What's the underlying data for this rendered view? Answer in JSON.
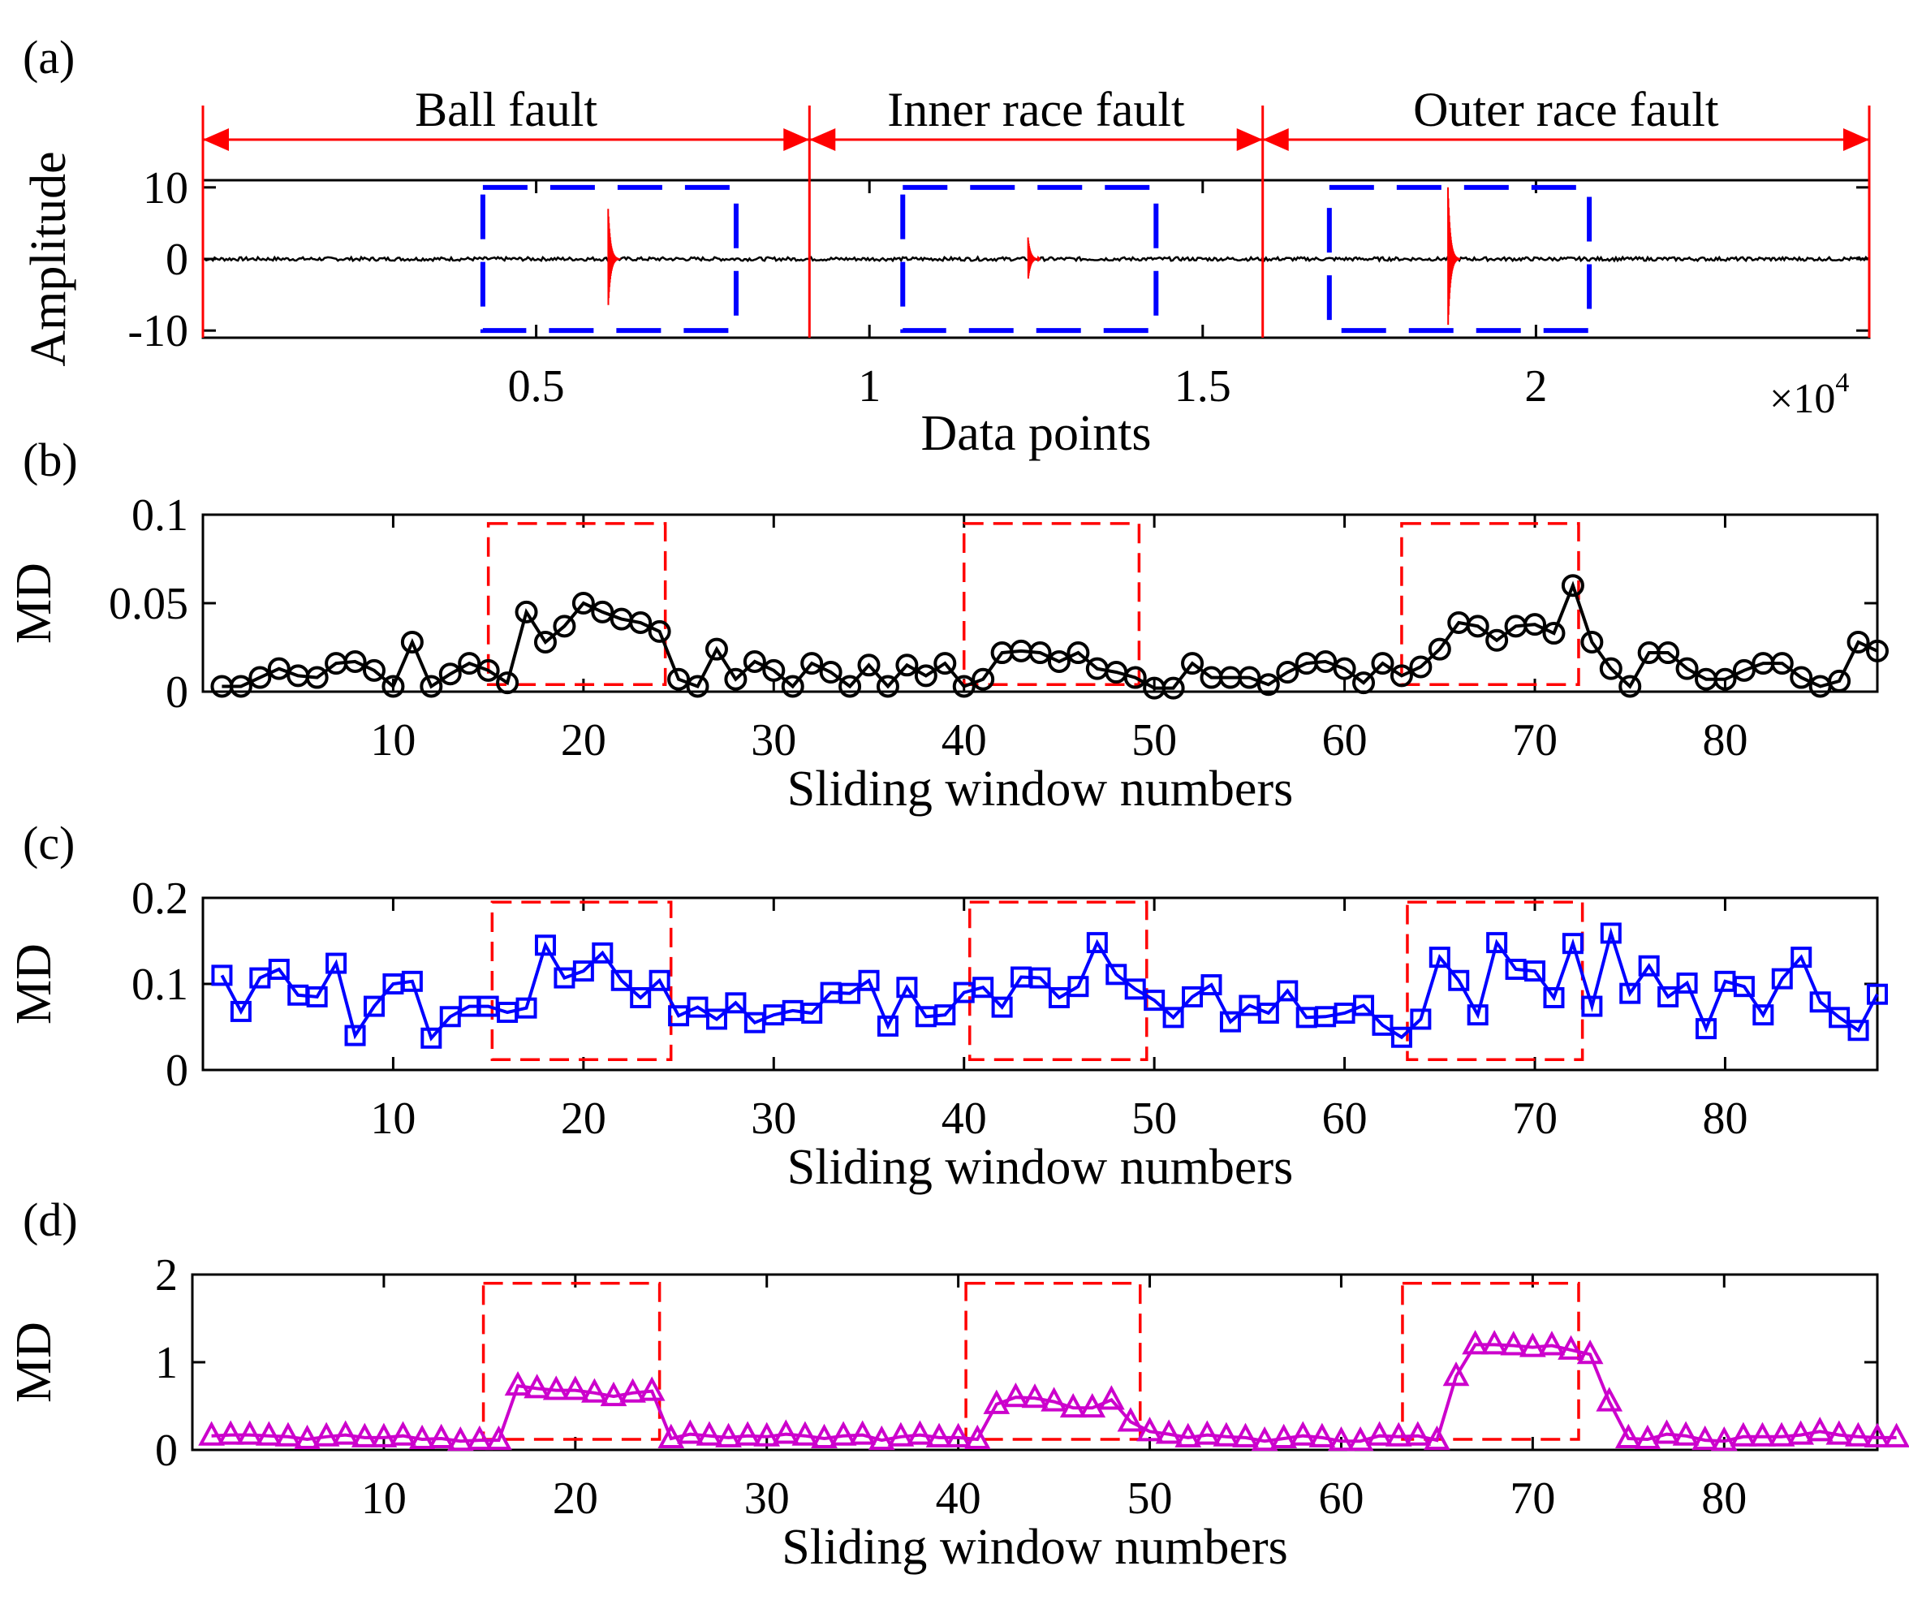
{
  "chart_data": [
    {
      "panel": "(a)",
      "type": "line",
      "xlabel": "Data points",
      "ylabel": "Amplitude",
      "xlim": [
        0,
        25000
      ],
      "ylim": [
        -11,
        11
      ],
      "x_ticks": [
        0.5,
        1,
        1.5,
        2
      ],
      "x_tick_labels": [
        "0.5",
        "1",
        "1.5",
        "2"
      ],
      "x_multiplier": "×10",
      "x_multiplier_exp": "4",
      "y_ticks": [
        -10,
        0,
        10
      ],
      "y_tick_labels": [
        "-10",
        "0",
        "10"
      ],
      "regions": [
        {
          "label": "Ball fault",
          "start": 0,
          "end": 9100
        },
        {
          "label": "Inner race fault",
          "start": 9100,
          "end": 15900
        },
        {
          "label": "Outer race fault",
          "start": 15900,
          "end": 25000
        }
      ],
      "boxes": [
        {
          "start": 4200,
          "end": 8000,
          "ymin": -10,
          "ymax": 10
        },
        {
          "start": 10500,
          "end": 14300,
          "ymin": -10,
          "ymax": 10
        },
        {
          "start": 16900,
          "end": 20800,
          "ymin": -10,
          "ymax": 10
        }
      ],
      "impulses": [
        {
          "center": 6100,
          "amplitude": 7
        },
        {
          "center": 12400,
          "amplitude": 3
        },
        {
          "center": 18700,
          "amplitude": 10
        }
      ],
      "colors": {
        "signal": "#000000",
        "impulse": "#ff0000",
        "region": "#ff0000",
        "box": "#0000ff"
      }
    },
    {
      "panel": "(b)",
      "type": "line",
      "marker": "circle",
      "color": "#000000",
      "xlabel": "Sliding window numbers",
      "ylabel": "MD",
      "xlim": [
        0,
        88
      ],
      "ylim": [
        0,
        0.1
      ],
      "x_ticks": [
        10,
        20,
        30,
        40,
        50,
        60,
        70,
        80
      ],
      "x_tick_labels": [
        "10",
        "20",
        "30",
        "40",
        "50",
        "60",
        "70",
        "80"
      ],
      "y_ticks": [
        0,
        0.05,
        0.1
      ],
      "y_tick_labels": [
        "0",
        "0.05",
        "0.1"
      ],
      "boxes": [
        {
          "start": 15,
          "end": 24.3,
          "ymin": 0.004,
          "ymax": 0.095
        },
        {
          "start": 40,
          "end": 49.2,
          "ymin": 0.004,
          "ymax": 0.095
        },
        {
          "start": 63,
          "end": 72.3,
          "ymin": 0.004,
          "ymax": 0.095
        }
      ],
      "values": [
        0.003,
        0.003,
        0.008,
        0.013,
        0.009,
        0.008,
        0.016,
        0.017,
        0.012,
        0.003,
        0.028,
        0.003,
        0.01,
        0.016,
        0.012,
        0.005,
        0.045,
        0.028,
        0.037,
        0.05,
        0.045,
        0.041,
        0.039,
        0.034,
        0.007,
        0.003,
        0.024,
        0.007,
        0.017,
        0.012,
        0.003,
        0.016,
        0.011,
        0.003,
        0.015,
        0.003,
        0.015,
        0.009,
        0.016,
        0.003,
        0.007,
        0.022,
        0.023,
        0.022,
        0.017,
        0.022,
        0.013,
        0.011,
        0.008,
        0.002,
        0.002,
        0.016,
        0.008,
        0.008,
        0.008,
        0.004,
        0.011,
        0.016,
        0.017,
        0.013,
        0.005,
        0.016,
        0.009,
        0.014,
        0.024,
        0.039,
        0.037,
        0.029,
        0.037,
        0.038,
        0.033,
        0.06,
        0.028,
        0.013,
        0.003,
        0.022,
        0.022,
        0.013,
        0.007,
        0.007,
        0.012,
        0.016,
        0.016,
        0.008,
        0.003,
        0.006,
        0.028,
        0.023
      ]
    },
    {
      "panel": "(c)",
      "type": "line",
      "marker": "square",
      "color": "#0000ff",
      "xlabel": "Sliding window numbers",
      "ylabel": "MD",
      "xlim": [
        0,
        88
      ],
      "ylim": [
        0,
        0.2
      ],
      "x_ticks": [
        10,
        20,
        30,
        40,
        50,
        60,
        70,
        80
      ],
      "x_tick_labels": [
        "10",
        "20",
        "30",
        "40",
        "50",
        "60",
        "70",
        "80"
      ],
      "y_ticks": [
        0,
        0.1,
        0.2
      ],
      "y_tick_labels": [
        "0",
        "0.1",
        "0.2"
      ],
      "boxes": [
        {
          "start": 15.2,
          "end": 24.6,
          "ymin": 0.012,
          "ymax": 0.195
        },
        {
          "start": 40.3,
          "end": 49.6,
          "ymin": 0.012,
          "ymax": 0.195
        },
        {
          "start": 63.3,
          "end": 72.5,
          "ymin": 0.012,
          "ymax": 0.195
        }
      ],
      "values": [
        0.11,
        0.068,
        0.107,
        0.117,
        0.087,
        0.085,
        0.124,
        0.04,
        0.074,
        0.1,
        0.103,
        0.037,
        0.062,
        0.074,
        0.074,
        0.067,
        0.072,
        0.145,
        0.107,
        0.115,
        0.136,
        0.104,
        0.084,
        0.104,
        0.063,
        0.073,
        0.059,
        0.078,
        0.055,
        0.064,
        0.069,
        0.066,
        0.09,
        0.089,
        0.104,
        0.051,
        0.096,
        0.062,
        0.064,
        0.09,
        0.096,
        0.073,
        0.108,
        0.107,
        0.084,
        0.097,
        0.148,
        0.111,
        0.094,
        0.081,
        0.061,
        0.085,
        0.099,
        0.056,
        0.075,
        0.066,
        0.092,
        0.061,
        0.062,
        0.066,
        0.075,
        0.052,
        0.038,
        0.059,
        0.131,
        0.104,
        0.064,
        0.148,
        0.117,
        0.115,
        0.084,
        0.147,
        0.074,
        0.159,
        0.089,
        0.121,
        0.085,
        0.101,
        0.048,
        0.103,
        0.097,
        0.064,
        0.106,
        0.131,
        0.079,
        0.061,
        0.046,
        0.088
      ]
    },
    {
      "panel": "(d)",
      "type": "line",
      "marker": "triangle",
      "color": "#cc00cc",
      "xlabel": "Sliding window numbers",
      "ylabel": "MD",
      "xlim": [
        0,
        88
      ],
      "ylim": [
        0,
        2
      ],
      "x_ticks": [
        10,
        20,
        30,
        40,
        50,
        60,
        70,
        80
      ],
      "x_tick_labels": [
        "10",
        "20",
        "30",
        "40",
        "50",
        "60",
        "70",
        "80"
      ],
      "y_ticks": [
        0,
        1,
        2
      ],
      "y_tick_labels": [
        "0",
        "1",
        "2"
      ],
      "boxes": [
        {
          "start": 15.2,
          "end": 24.4,
          "ymin": 0.12,
          "ymax": 1.9
        },
        {
          "start": 40.4,
          "end": 49.5,
          "ymin": 0.12,
          "ymax": 1.9
        },
        {
          "start": 63.2,
          "end": 72.4,
          "ymin": 0.12,
          "ymax": 1.9
        }
      ],
      "values": [
        0.16,
        0.17,
        0.17,
        0.16,
        0.15,
        0.12,
        0.15,
        0.17,
        0.14,
        0.14,
        0.16,
        0.12,
        0.13,
        0.1,
        0.11,
        0.11,
        0.73,
        0.7,
        0.68,
        0.68,
        0.65,
        0.61,
        0.65,
        0.67,
        0.13,
        0.18,
        0.16,
        0.14,
        0.16,
        0.15,
        0.18,
        0.16,
        0.13,
        0.16,
        0.17,
        0.11,
        0.15,
        0.17,
        0.14,
        0.14,
        0.12,
        0.52,
        0.6,
        0.59,
        0.55,
        0.48,
        0.48,
        0.57,
        0.32,
        0.21,
        0.18,
        0.14,
        0.17,
        0.15,
        0.14,
        0.1,
        0.13,
        0.16,
        0.14,
        0.1,
        0.1,
        0.16,
        0.15,
        0.16,
        0.11,
        0.84,
        1.2,
        1.2,
        1.19,
        1.17,
        1.19,
        1.14,
        1.09,
        0.55,
        0.13,
        0.12,
        0.18,
        0.16,
        0.11,
        0.1,
        0.15,
        0.15,
        0.15,
        0.17,
        0.21,
        0.17,
        0.15,
        0.14,
        0.14
      ]
    }
  ]
}
